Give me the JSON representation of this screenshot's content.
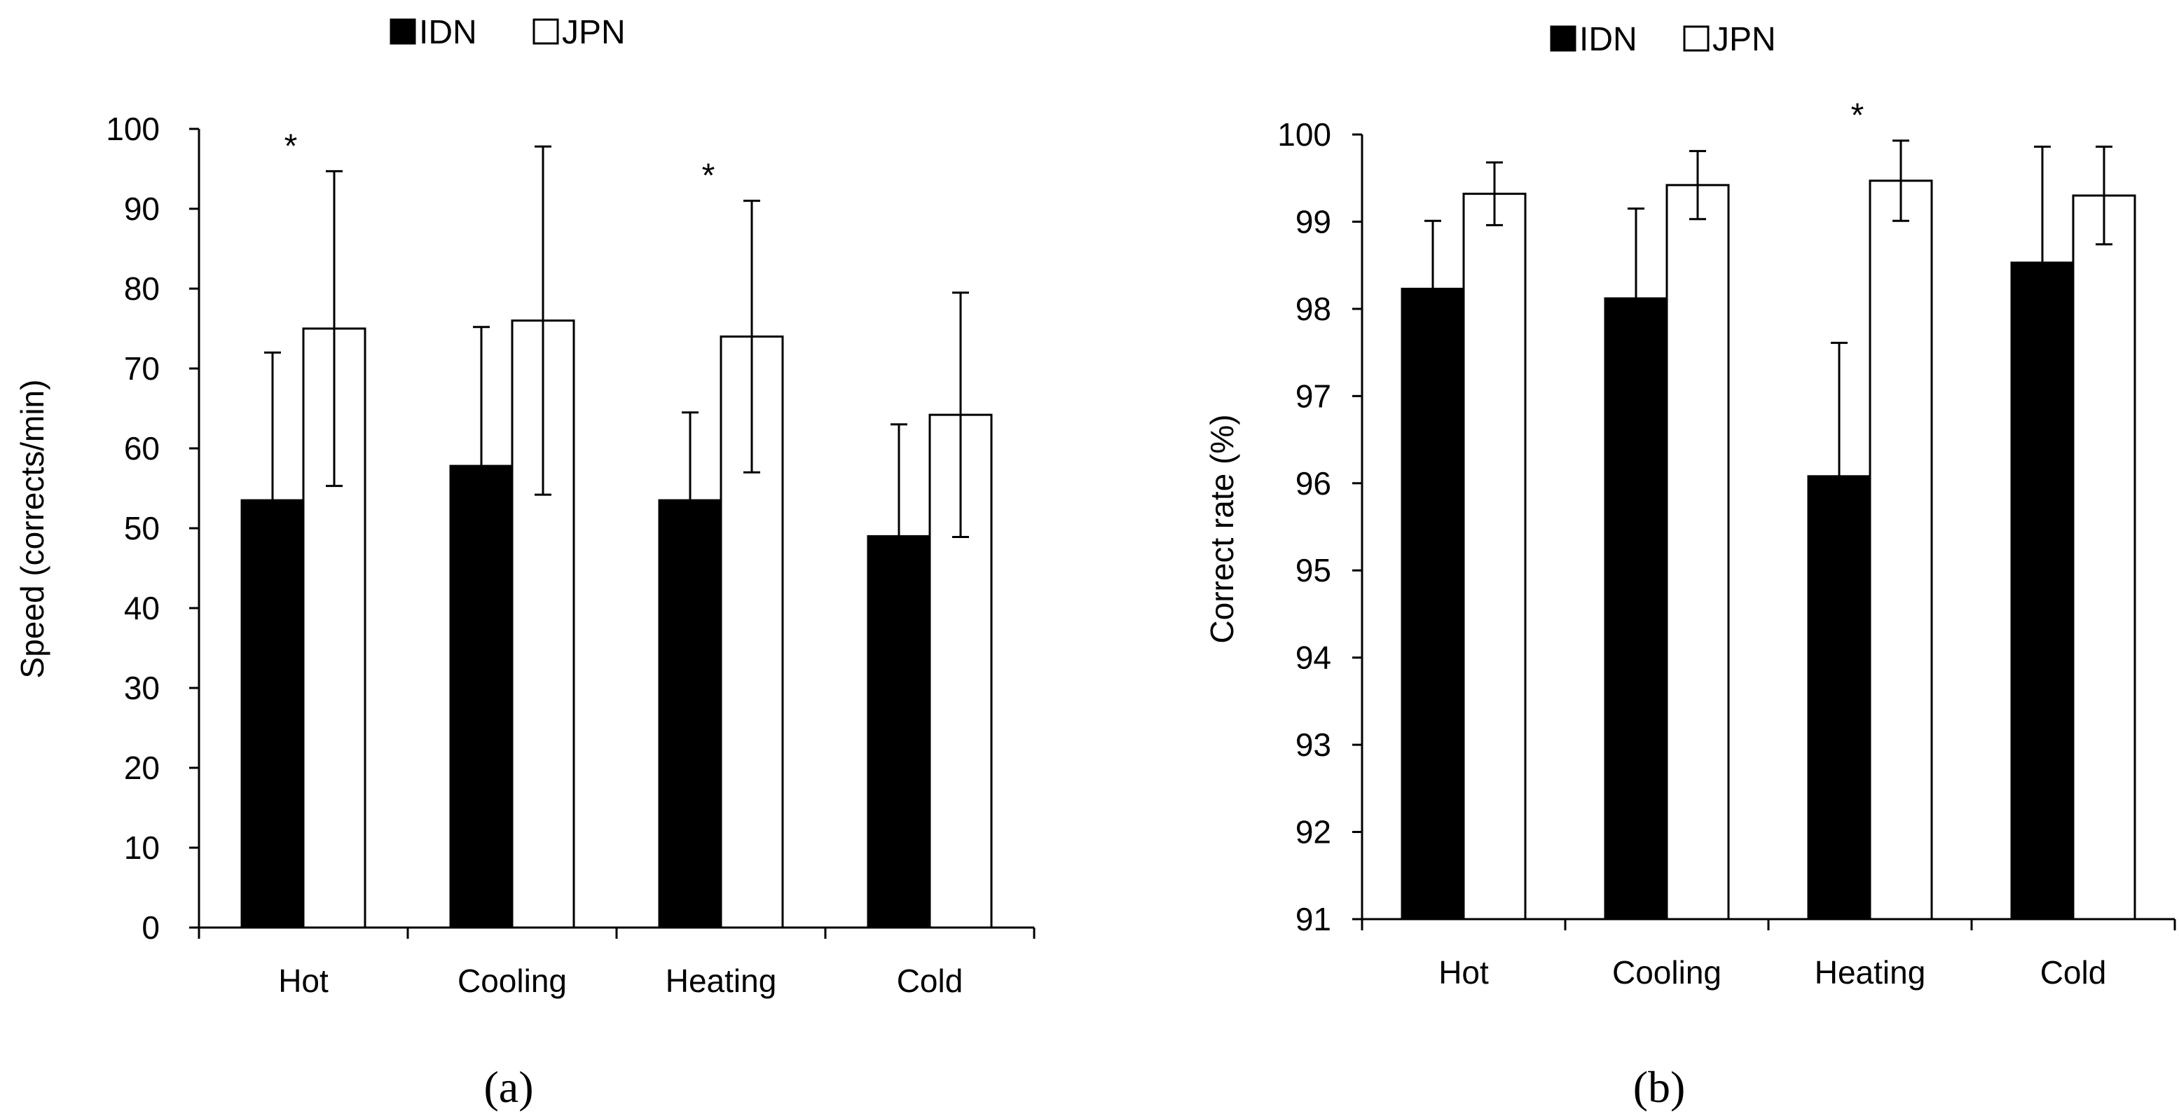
{
  "colors": {
    "idn": "#000000",
    "jpn": "#ffffff",
    "stroke": "#000000"
  },
  "chart_data": [
    {
      "type": "bar",
      "panel_label": "(a)",
      "title": "",
      "xlabel": "",
      "ylabel": "Speed (corrects/min)",
      "ylim": [
        0,
        100
      ],
      "yticks": [
        "0",
        "10",
        "20",
        "30",
        "40",
        "50",
        "60",
        "70",
        "80",
        "90",
        "100"
      ],
      "categories": [
        "Hot",
        "Cooling",
        "Heating",
        "Cold"
      ],
      "series": [
        {
          "name": "IDN",
          "values": [
            53.5,
            57.8,
            53.5,
            49.0
          ],
          "error": [
            18.5,
            17.4,
            11.0,
            14.0
          ]
        },
        {
          "name": "JPN",
          "values": [
            75.0,
            76.0,
            74.0,
            64.2
          ],
          "error": [
            19.7,
            21.8,
            17.0,
            15.3
          ]
        }
      ],
      "significance": [
        "*",
        "",
        "*",
        ""
      ],
      "legend": [
        "IDN",
        "JPN"
      ],
      "legend_position": "top",
      "grid": false
    },
    {
      "type": "bar",
      "panel_label": "(b)",
      "title": "",
      "xlabel": "",
      "ylabel": "Correct rate (%)",
      "ylim": [
        91,
        100
      ],
      "yticks": [
        "91",
        "92",
        "93",
        "94",
        "95",
        "96",
        "97",
        "98",
        "99",
        "100"
      ],
      "categories": [
        "Hot",
        "Cooling",
        "Heating",
        "Cold"
      ],
      "series": [
        {
          "name": "IDN",
          "values": [
            98.23,
            98.12,
            96.08,
            98.53
          ],
          "error": [
            0.78,
            1.03,
            1.53,
            1.33
          ]
        },
        {
          "name": "JPN",
          "values": [
            99.32,
            99.42,
            99.47,
            99.3
          ],
          "error": [
            0.36,
            0.39,
            0.46,
            0.56
          ]
        }
      ],
      "significance": [
        "",
        "",
        "*",
        ""
      ],
      "legend": [
        "IDN",
        "JPN"
      ],
      "legend_position": "top",
      "grid": false
    }
  ]
}
